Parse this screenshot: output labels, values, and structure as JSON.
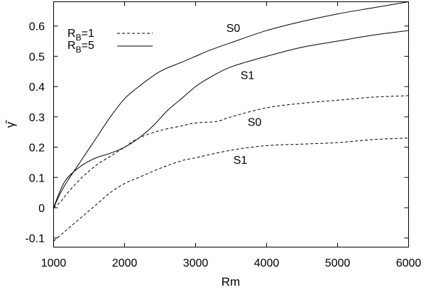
{
  "chart_data": {
    "type": "line",
    "title": "",
    "xlabel": "Rm",
    "ylabel": "γ̂",
    "xlim": [
      1000,
      6000
    ],
    "ylim": [
      -0.13,
      0.68
    ],
    "xticks": [
      1000,
      2000,
      3000,
      4000,
      5000,
      6000
    ],
    "yticks": [
      -0.1,
      0,
      0.1,
      0.2,
      0.3,
      0.4,
      0.5,
      0.6
    ],
    "grid": false,
    "legend": {
      "placement": "top-left",
      "entries": [
        {
          "label": "R",
          "subscript": "B",
          "suffix": "=1",
          "style": "dashed"
        },
        {
          "label": "R",
          "subscript": "B",
          "suffix": "=5",
          "style": "solid"
        }
      ]
    },
    "series": [
      {
        "style": "solid",
        "x": [
          1000,
          1100,
          1200,
          1400,
          1600,
          1800,
          2000,
          2200,
          2500,
          2800,
          3000,
          3200,
          3500,
          4000,
          4500,
          5000,
          5500,
          6000
        ],
        "y": [
          0.0,
          0.05,
          0.09,
          0.16,
          0.23,
          0.3,
          0.36,
          0.4,
          0.45,
          0.48,
          0.5,
          0.52,
          0.545,
          0.585,
          0.615,
          0.64,
          0.66,
          0.68
        ]
      },
      {
        "style": "solid",
        "x": [
          1000,
          1100,
          1200,
          1400,
          1600,
          1800,
          2000,
          2200,
          2400,
          2600,
          2800,
          3000,
          3200,
          3500,
          4000,
          4500,
          5000,
          5500,
          6000
        ],
        "y": [
          0.0,
          0.06,
          0.1,
          0.14,
          0.165,
          0.18,
          0.2,
          0.23,
          0.27,
          0.32,
          0.36,
          0.4,
          0.43,
          0.465,
          0.5,
          0.53,
          0.55,
          0.57,
          0.585
        ]
      },
      {
        "style": "dashed",
        "x": [
          1000,
          1100,
          1200,
          1400,
          1600,
          1800,
          2000,
          2200,
          2500,
          2800,
          3000,
          3300,
          3500,
          4000,
          4500,
          5000,
          5500,
          6000
        ],
        "y": [
          0.0,
          0.02,
          0.05,
          0.1,
          0.14,
          0.17,
          0.2,
          0.23,
          0.255,
          0.27,
          0.28,
          0.285,
          0.3,
          0.33,
          0.345,
          0.355,
          0.365,
          0.37
        ]
      },
      {
        "style": "dashed",
        "x": [
          1000,
          1100,
          1200,
          1400,
          1600,
          1800,
          2000,
          2200,
          2500,
          2800,
          3000,
          3500,
          4000,
          4500,
          5000,
          5500,
          6000
        ],
        "y": [
          -0.11,
          -0.09,
          -0.07,
          -0.03,
          0.01,
          0.05,
          0.08,
          0.1,
          0.13,
          0.155,
          0.165,
          0.19,
          0.205,
          0.21,
          0.215,
          0.225,
          0.23
        ]
      }
    ],
    "annotations": [
      {
        "text": "S0",
        "x": 3530,
        "y": 0.58
      },
      {
        "text": "S1",
        "x": 3730,
        "y": 0.425
      },
      {
        "text": "S0",
        "x": 3830,
        "y": 0.27
      },
      {
        "text": "S1",
        "x": 3630,
        "y": 0.145
      }
    ]
  }
}
